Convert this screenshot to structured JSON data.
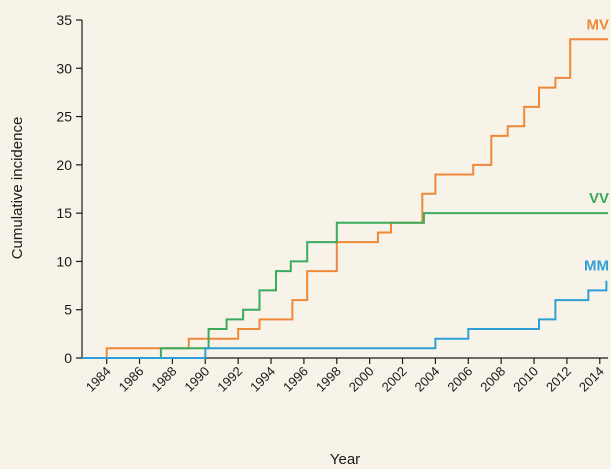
{
  "chart_data": {
    "type": "line",
    "step": true,
    "xlabel": "Year",
    "ylabel": "Cumulative incidence",
    "xlim": [
      1982.5,
      2014.5
    ],
    "ylim": [
      0,
      35
    ],
    "x_ticks": [
      1984,
      1986,
      1988,
      1990,
      1992,
      1994,
      1996,
      1998,
      2000,
      2002,
      2004,
      2006,
      2008,
      2010,
      2012,
      2014
    ],
    "y_ticks": [
      0,
      5,
      10,
      15,
      20,
      25,
      30,
      35
    ],
    "grid": false,
    "legend": "direct labels at line ends",
    "series": [
      {
        "name": "MV",
        "color": "#f0883a",
        "points": [
          [
            1982.5,
            0
          ],
          [
            1984,
            1
          ],
          [
            1987,
            1
          ],
          [
            1989,
            2
          ],
          [
            1991,
            2
          ],
          [
            1992,
            3
          ],
          [
            1993,
            3
          ],
          [
            1993.3,
            4
          ],
          [
            1995,
            4
          ],
          [
            1995.3,
            6
          ],
          [
            1996,
            6
          ],
          [
            1996.2,
            9
          ],
          [
            1998,
            9
          ],
          [
            1998,
            12
          ],
          [
            2000,
            12
          ],
          [
            2000.5,
            13
          ],
          [
            2001,
            13
          ],
          [
            2001.3,
            14
          ],
          [
            2003,
            14
          ],
          [
            2003.2,
            17
          ],
          [
            2004,
            17
          ],
          [
            2004,
            19
          ],
          [
            2006,
            19
          ],
          [
            2006.3,
            20
          ],
          [
            2007,
            20
          ],
          [
            2007.4,
            23
          ],
          [
            2008,
            23
          ],
          [
            2008.4,
            24
          ],
          [
            2009,
            24
          ],
          [
            2009.4,
            26
          ],
          [
            2010,
            26
          ],
          [
            2010.3,
            28
          ],
          [
            2011,
            28
          ],
          [
            2011.3,
            29
          ],
          [
            2012,
            29
          ],
          [
            2012.2,
            33
          ],
          [
            2014.5,
            33
          ]
        ]
      },
      {
        "name": "VV",
        "color": "#3aab5c",
        "points": [
          [
            1982.5,
            0
          ],
          [
            1987.3,
            0
          ],
          [
            1987.3,
            1
          ],
          [
            1990,
            1
          ],
          [
            1990.2,
            3
          ],
          [
            1991,
            3
          ],
          [
            1991.3,
            4
          ],
          [
            1992,
            4
          ],
          [
            1992.3,
            5
          ],
          [
            1993,
            5
          ],
          [
            1993.3,
            7
          ],
          [
            1994,
            7
          ],
          [
            1994.3,
            9
          ],
          [
            1995,
            9
          ],
          [
            1995.2,
            10
          ],
          [
            1996,
            10
          ],
          [
            1996.2,
            12
          ],
          [
            1998,
            12
          ],
          [
            1998,
            14
          ],
          [
            2003,
            14
          ],
          [
            2003.3,
            15
          ],
          [
            2014.5,
            15
          ]
        ]
      },
      {
        "name": "MM",
        "color": "#2e9fd8",
        "points": [
          [
            1982.5,
            0
          ],
          [
            1990,
            0
          ],
          [
            1990,
            1
          ],
          [
            2004,
            1
          ],
          [
            2004,
            2
          ],
          [
            2006,
            2
          ],
          [
            2006,
            3
          ],
          [
            2010,
            3
          ],
          [
            2010.3,
            4
          ],
          [
            2011,
            4
          ],
          [
            2011.3,
            6
          ],
          [
            2013,
            6
          ],
          [
            2013.3,
            7
          ],
          [
            2014,
            7
          ],
          [
            2014.4,
            8
          ]
        ]
      }
    ]
  }
}
